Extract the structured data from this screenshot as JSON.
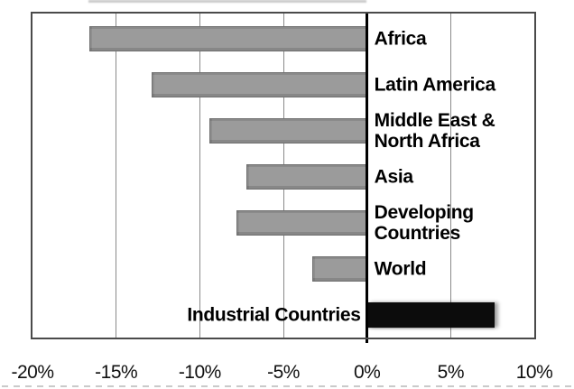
{
  "chart_data": {
    "type": "bar",
    "orientation": "horizontal",
    "title": "",
    "xlabel": "",
    "ylabel": "",
    "categories": [
      "Africa",
      "Latin America",
      "Middle East &\nNorth Africa",
      "Asia",
      "Developing Countries",
      "World",
      "Industrial Countries"
    ],
    "values": [
      -16.6,
      -12.9,
      -9.4,
      -7.2,
      -7.8,
      -3.3,
      7.6
    ],
    "unit": "%",
    "xlim": [
      -20,
      10
    ],
    "xticks": [
      {
        "label": "-20%",
        "value": -20
      },
      {
        "label": "-15%",
        "value": -15
      },
      {
        "label": "-10%",
        "value": -10
      },
      {
        "label": "-5%",
        "value": -5
      },
      {
        "label": "0%",
        "value": 0
      },
      {
        "label": "5%",
        "value": 5
      },
      {
        "label": "10%",
        "value": 10
      }
    ],
    "grid": true,
    "legend": null,
    "colors": {
      "negative_bar": "#9b9b9b",
      "positive_bar": "#0c0c0c",
      "gridline": "#8a8a8a",
      "zero_line": "#000000",
      "plot_border": "#4a4a4a",
      "label_text": "#000000"
    }
  }
}
